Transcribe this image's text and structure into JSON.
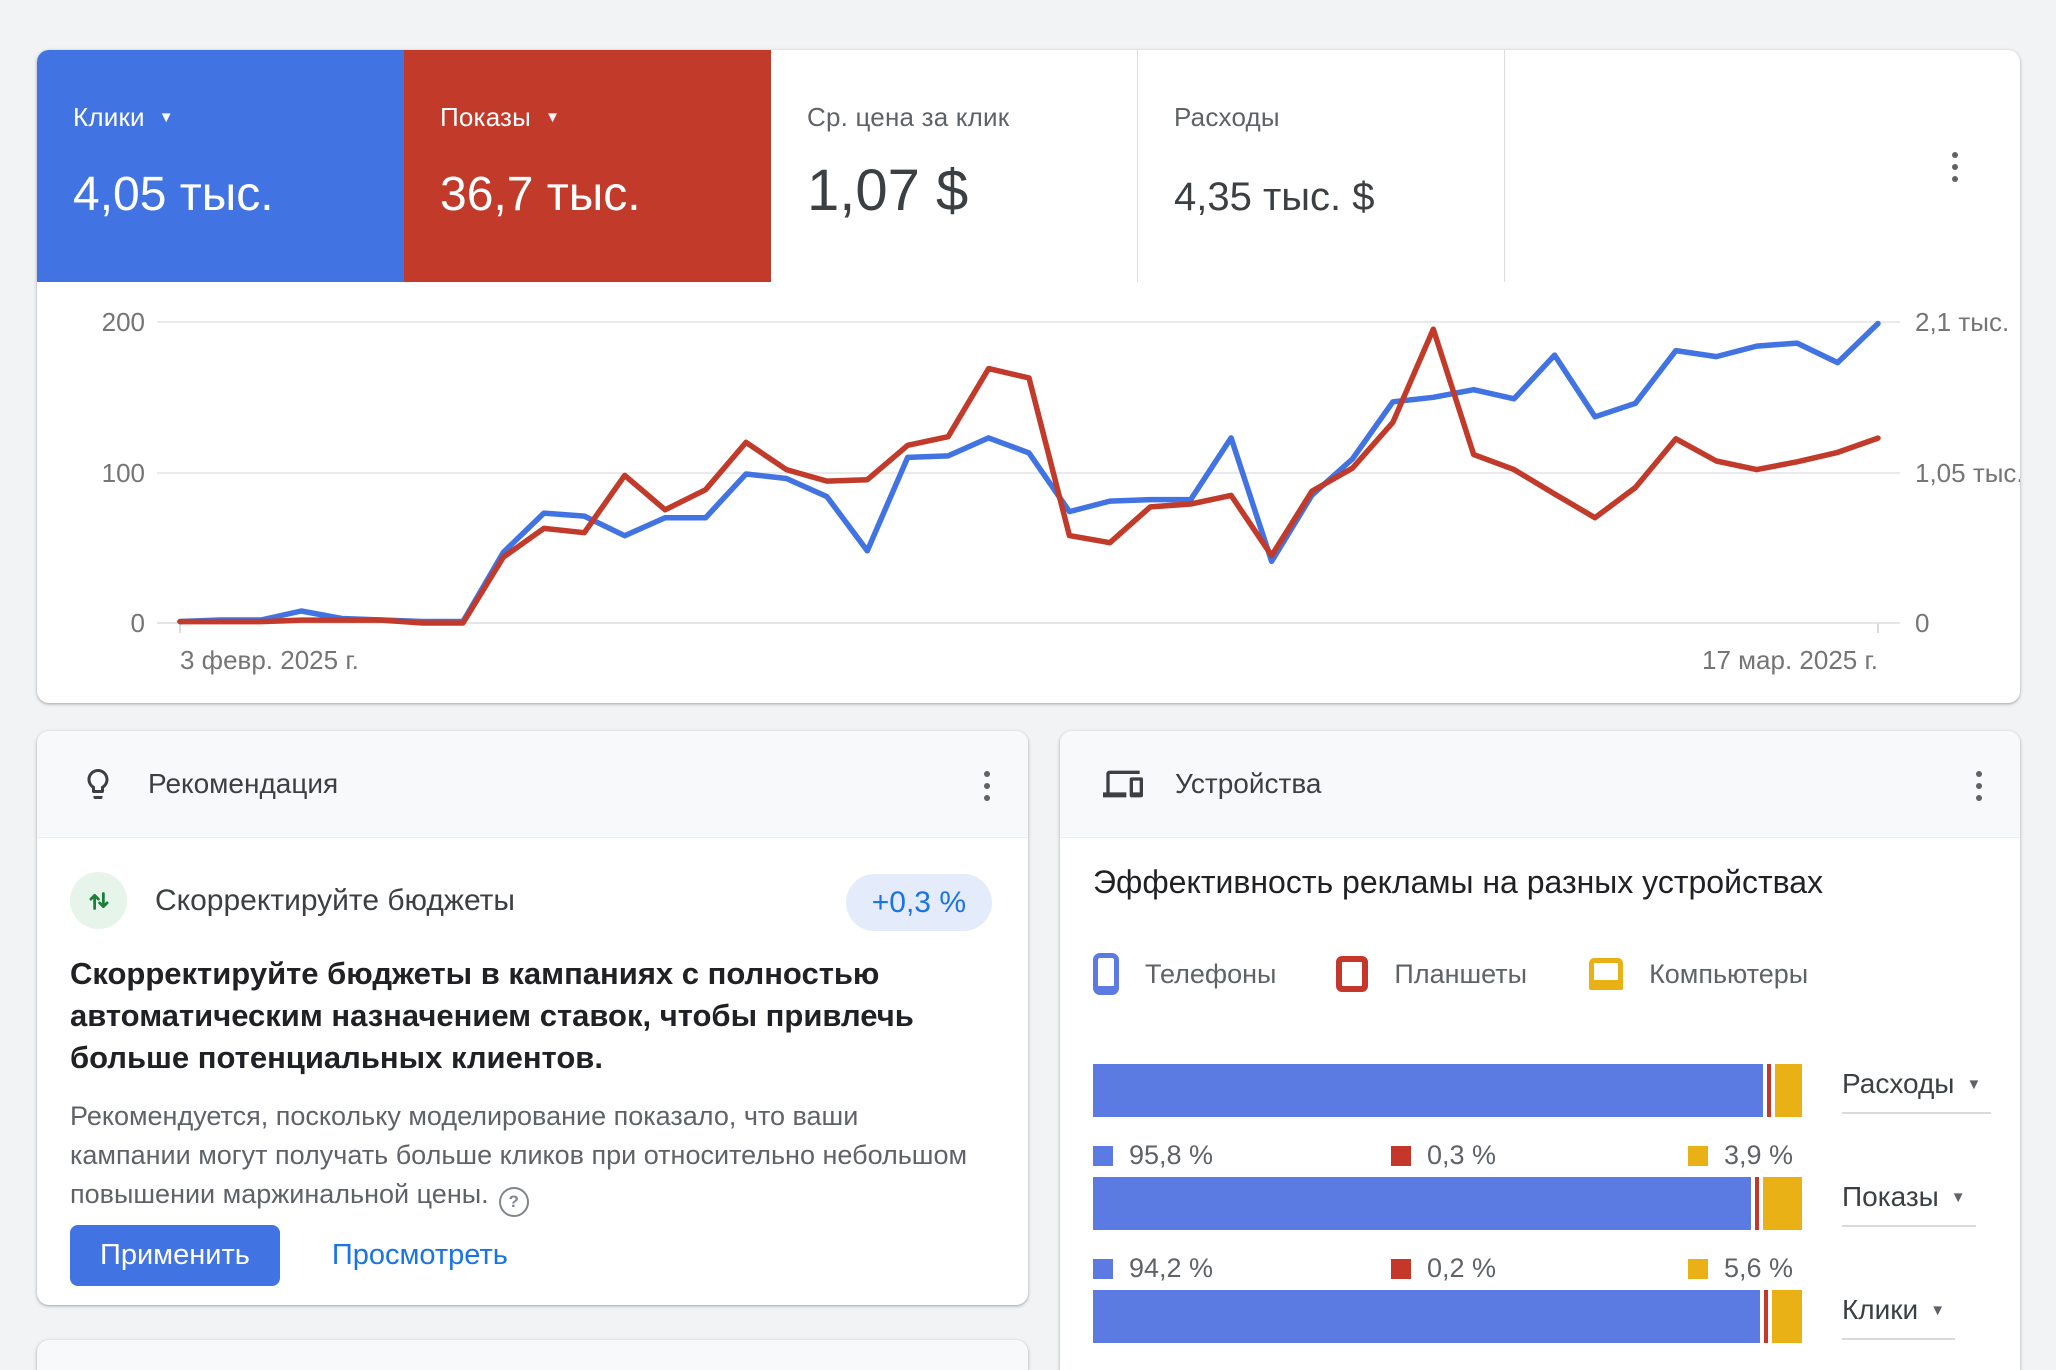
{
  "scorecards": [
    {
      "label": "Клики",
      "value": "4,05 тыс.",
      "selected": true,
      "color": "#4173e2"
    },
    {
      "label": "Показы",
      "value": "36,7 тыс.",
      "selected": true,
      "color": "#c23a2a"
    },
    {
      "label": "Ср. цена за клик",
      "value": "1,07 $",
      "selected": false
    },
    {
      "label": "Расходы",
      "value": "4,35 тыс. $",
      "selected": false
    }
  ],
  "chart_data": {
    "type": "line",
    "title": "",
    "x_start_label": "3 февр. 2025 г.",
    "x_end_label": "17 мар. 2025 г.",
    "grid": "horizontal",
    "left_axis": {
      "label": "Клики",
      "ticks": [
        "200",
        "100",
        "0"
      ],
      "range": [
        0,
        200
      ]
    },
    "right_axis": {
      "label": "Показы",
      "ticks": [
        "2,1 тыс.",
        "1,05 тыс.",
        "0"
      ],
      "range": [
        0,
        2100
      ]
    },
    "x": [
      "3 февр.",
      "4 февр.",
      "5 февр.",
      "6 февр.",
      "7 февр.",
      "8 февр.",
      "9 февр.",
      "10 февр.",
      "11 февр.",
      "12 февр.",
      "13 февр.",
      "14 февр.",
      "15 февр.",
      "16 февр.",
      "17 февр.",
      "18 февр.",
      "19 февр.",
      "20 февр.",
      "21 февр.",
      "22 февр.",
      "23 февр.",
      "24 февр.",
      "25 февр.",
      "26 февр.",
      "27 февр.",
      "28 февр.",
      "1 мар.",
      "2 мар.",
      "3 мар.",
      "4 мар.",
      "5 мар.",
      "6 мар.",
      "7 мар.",
      "8 мар.",
      "9 мар.",
      "10 мар.",
      "11 мар.",
      "12 мар.",
      "13 мар.",
      "14 мар.",
      "15 мар.",
      "16 мар.",
      "17 мар."
    ],
    "series": [
      {
        "name": "Клики",
        "axis": "left",
        "color": "#4173e2",
        "values": [
          1,
          2,
          2,
          8,
          3,
          2,
          1,
          1,
          47,
          73,
          71,
          58,
          70,
          70,
          99,
          96,
          84,
          48,
          110,
          111,
          123,
          113,
          74,
          81,
          82,
          82,
          123,
          41,
          85,
          109,
          147,
          150,
          155,
          149,
          178,
          137,
          146,
          181,
          177,
          184,
          186,
          173,
          199
        ]
      },
      {
        "name": "Показы",
        "axis": "right",
        "color": "#c23a2a",
        "values": [
          10,
          10,
          10,
          20,
          20,
          20,
          0,
          0,
          460,
          660,
          630,
          1030,
          790,
          930,
          1260,
          1070,
          990,
          1000,
          1240,
          1300,
          1775,
          1710,
          610,
          560,
          810,
          830,
          890,
          470,
          920,
          1080,
          1400,
          2050,
          1175,
          1070,
          900,
          735,
          945,
          1285,
          1130,
          1070,
          1125,
          1190,
          1290
        ]
      }
    ]
  },
  "recommendation": {
    "header": "Рекомендация",
    "type_title": "Скорректируйте бюджеты",
    "badge": "+0,3 %",
    "headline": "Скорректируйте бюджеты в кампаниях с полностью автоматическим назначением ставок, чтобы привлечь больше потенциальных клиентов.",
    "body": "Рекомендуется, поскольку моделирование показало, что ваши кампании могут получать больше кликов при относительно небольшом повышении маржинальной цены.",
    "help_glyph": "?",
    "apply_label": "Применить",
    "view_label": "Просмотреть"
  },
  "devices": {
    "header": "Устройства",
    "title": "Эффективность рекламы на разных устройствах",
    "legend": [
      {
        "label": "Телефоны",
        "color": "#5b7be2",
        "icon": "phone-icon"
      },
      {
        "label": "Планшеты",
        "color": "#c5372b",
        "icon": "tablet-icon"
      },
      {
        "label": "Компьютеры",
        "color": "#e9b115",
        "icon": "laptop-icon"
      }
    ],
    "bars": [
      {
        "label": "Расходы",
        "segments": [
          {
            "name": "Телефоны",
            "value": 95.8,
            "text": "95,8 %"
          },
          {
            "name": "Планшеты",
            "value": 0.3,
            "text": "0,3 %"
          },
          {
            "name": "Компьютеры",
            "value": 3.9,
            "text": "3,9 %"
          }
        ]
      },
      {
        "label": "Показы",
        "segments": [
          {
            "name": "Телефоны",
            "value": 94.2,
            "text": "94,2 %"
          },
          {
            "name": "Планшеты",
            "value": 0.2,
            "text": "0,2 %"
          },
          {
            "name": "Компьютеры",
            "value": 5.6,
            "text": "5,6 %"
          }
        ]
      },
      {
        "label": "Клики",
        "segments": [
          {
            "name": "Телефоны",
            "value": 95.4,
            "text": "95,4 %"
          },
          {
            "name": "Планшеты",
            "value": 0.3,
            "text": "0,3 %"
          },
          {
            "name": "Компьютеры",
            "value": 4.3,
            "text": "4,3 %"
          }
        ]
      }
    ]
  }
}
